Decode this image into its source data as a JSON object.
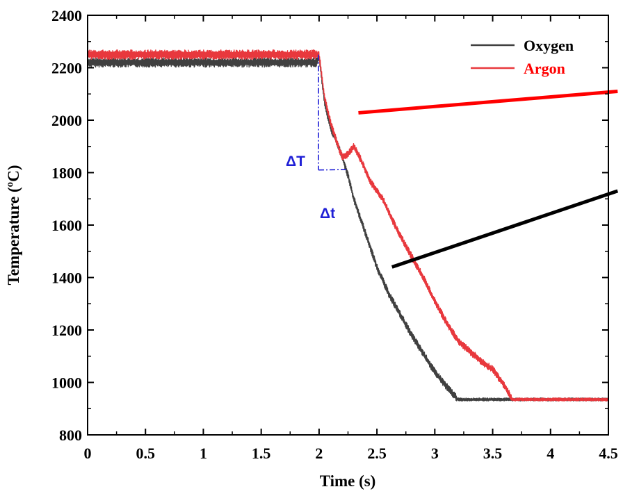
{
  "chart_data": {
    "type": "line",
    "title": "",
    "xlabel": "Time (s)",
    "ylabel": "Temperature (ºC)",
    "xlim": [
      0,
      4.5
    ],
    "ylim": [
      800,
      2400
    ],
    "x_ticks": [
      "0",
      "0.5",
      "1",
      "1.5",
      "2",
      "2.5",
      "3",
      "3.5",
      "4",
      "4.5"
    ],
    "x_tick_values": [
      0,
      0.5,
      1,
      1.5,
      2,
      2.5,
      3,
      3.5,
      4,
      4.5
    ],
    "y_ticks": [
      "800",
      "1000",
      "1200",
      "1400",
      "1600",
      "1800",
      "2000",
      "2200",
      "2400"
    ],
    "y_tick_values": [
      800,
      1000,
      1200,
      1400,
      1600,
      1800,
      2000,
      2200,
      2400
    ],
    "grid": false,
    "legend_position": "top-right",
    "series": [
      {
        "name": "Oxygen",
        "color": "#404040",
        "x": [
          0,
          1.97,
          2.0,
          2.05,
          2.1,
          2.15,
          2.2,
          2.25,
          2.3,
          2.4,
          2.5,
          2.6,
          2.7,
          2.8,
          2.9,
          3.0,
          3.1,
          3.2,
          3.3,
          3.5,
          3.7,
          4.0,
          4.3,
          4.5
        ],
        "y": [
          2220,
          2220,
          2240,
          2060,
          1970,
          1920,
          1860,
          1790,
          1700,
          1570,
          1440,
          1340,
          1260,
          1180,
          1110,
          1040,
          985,
          935,
          935,
          935,
          935,
          935,
          935,
          935
        ]
      },
      {
        "name": "Argon",
        "color": "#e8383d",
        "x": [
          0,
          1.99,
          2.0,
          2.05,
          2.1,
          2.15,
          2.2,
          2.25,
          2.3,
          2.35,
          2.4,
          2.45,
          2.5,
          2.55,
          2.6,
          2.7,
          2.8,
          2.9,
          3.0,
          3.1,
          3.2,
          3.3,
          3.4,
          3.5,
          3.6,
          3.67,
          3.8,
          4.0,
          4.3,
          4.5
        ],
        "y": [
          2250,
          2250,
          2250,
          2080,
          1990,
          1920,
          1860,
          1870,
          1900,
          1860,
          1810,
          1760,
          1730,
          1700,
          1650,
          1560,
          1480,
          1400,
          1310,
          1230,
          1160,
          1120,
          1080,
          1050,
          990,
          935,
          935,
          935,
          935,
          935
        ]
      }
    ],
    "annotations": [
      {
        "text": "ΔT",
        "color": "#1f1fd6"
      },
      {
        "text": "Δt",
        "color": "#1f1fd6"
      }
    ],
    "dashdot_lines": [
      {
        "x": [
          1.995,
          1.995
        ],
        "y": [
          2250,
          1810
        ],
        "color": "#1f1fd6"
      },
      {
        "x": [
          1.995,
          2.25
        ],
        "y": [
          1810,
          1812
        ],
        "color": "#1f1fd6"
      }
    ],
    "pointer_lines": [
      {
        "color": "#ff0000",
        "x": [
          2.34,
          4.58
        ],
        "y": [
          2028,
          2110
        ]
      },
      {
        "color": "#000000",
        "x": [
          2.63,
          4.58
        ],
        "y": [
          1440,
          1730
        ]
      }
    ]
  }
}
